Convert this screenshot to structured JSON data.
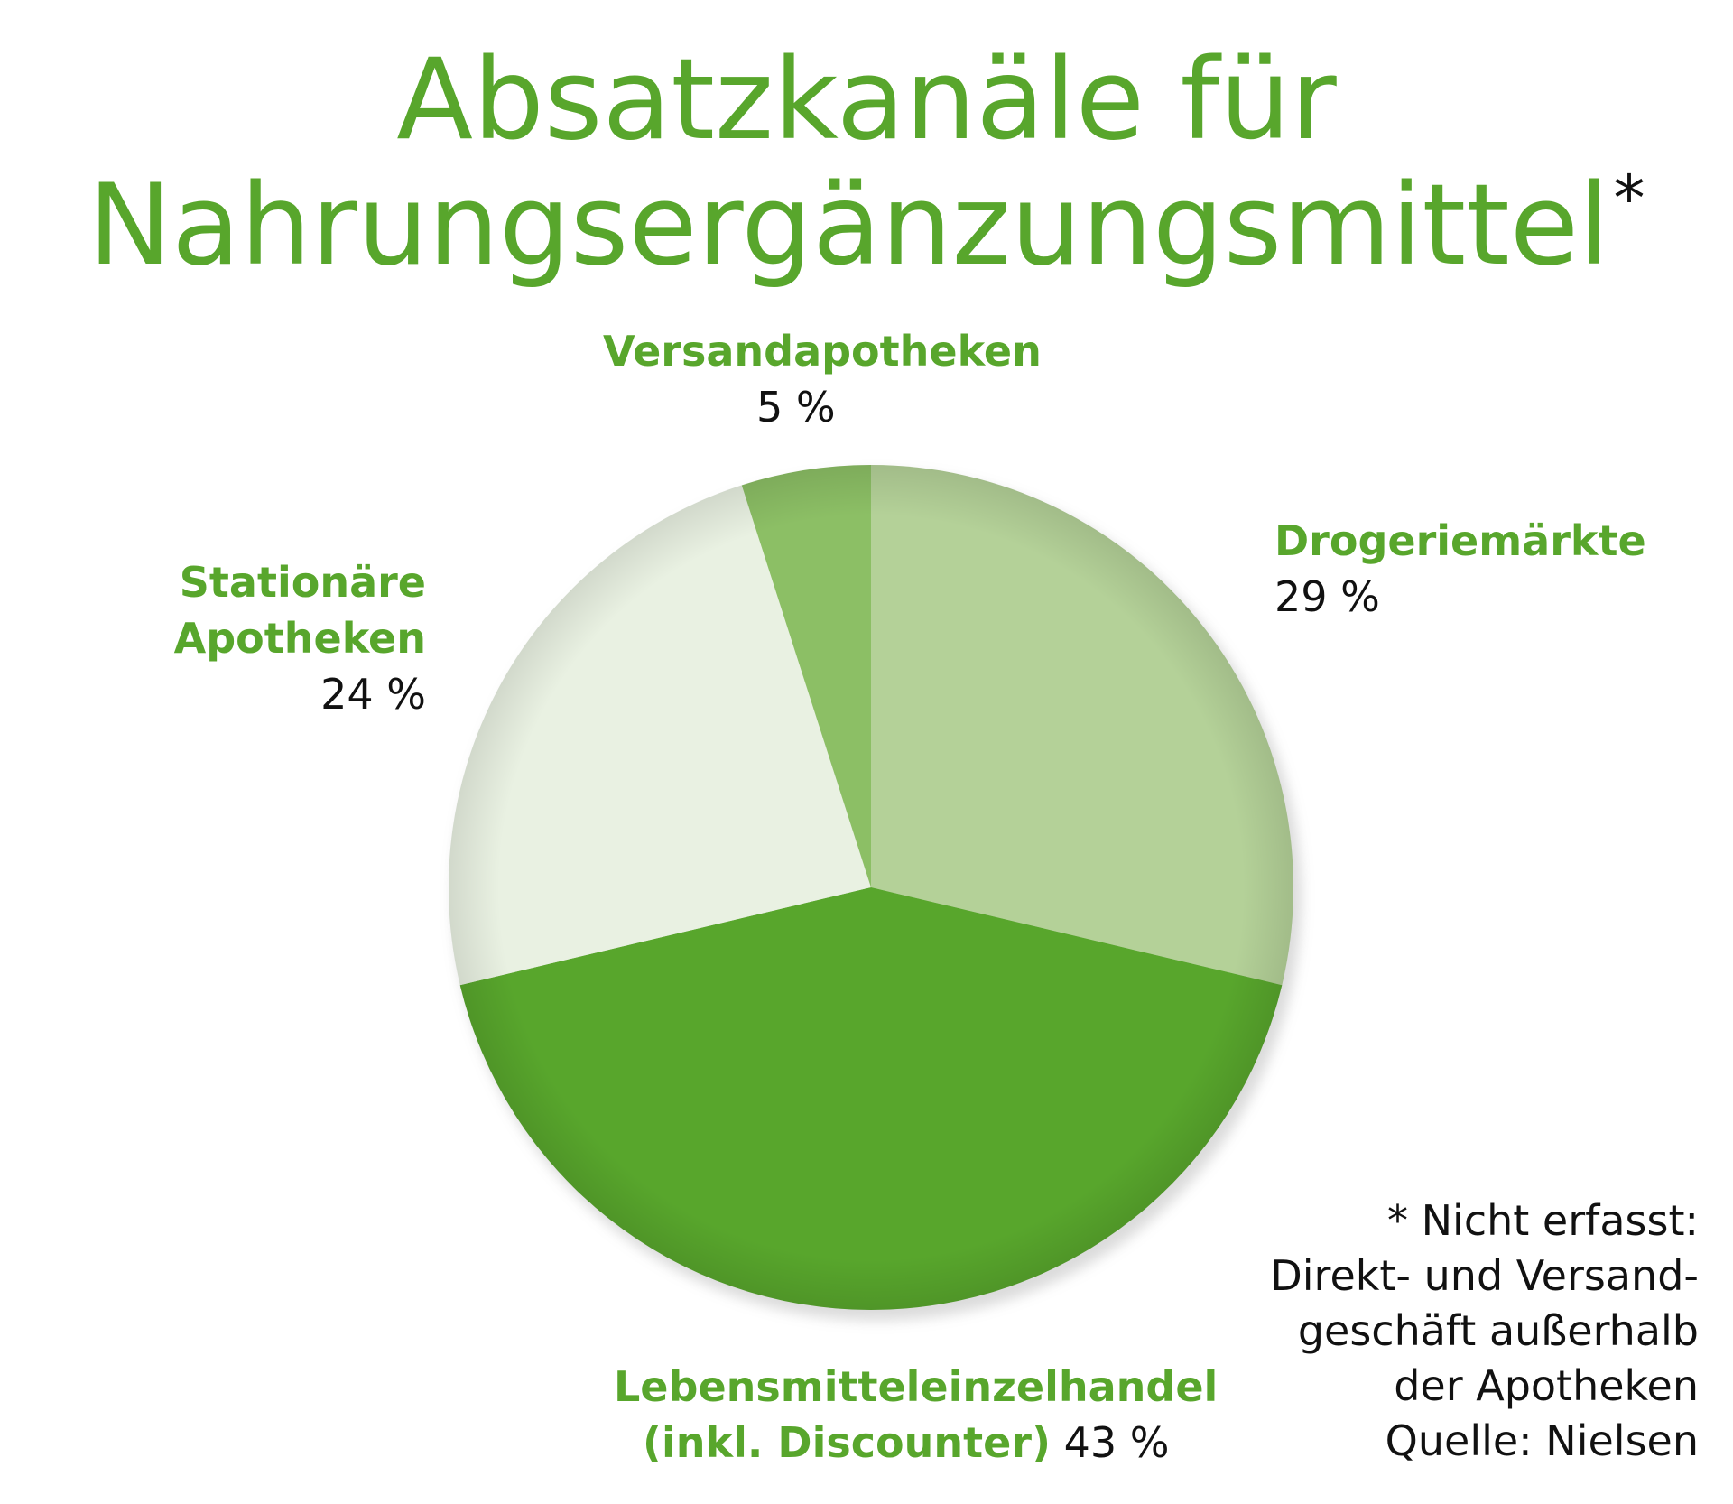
{
  "colors": {
    "title": "#58a62c",
    "label": "#58a62c",
    "value": "#111111",
    "slice_drogeriemaerkte": "#b4d198",
    "slice_lebensmittel": "#58a62c",
    "slice_stationaere_apotheken": "#e9f1e2",
    "slice_versandapotheken": "#8cbf65"
  },
  "title": {
    "line1": "Absatzkanäle für",
    "line2": "Nahrungsergänzungsmittel",
    "asterisk": "*"
  },
  "labels": {
    "versand": {
      "name": "Versandapotheken",
      "value": "5 %"
    },
    "drogerie": {
      "name": "Drogeriemärkte",
      "value": "29 %"
    },
    "stationaer": {
      "name_line1": "Stationäre",
      "name_line2": "Apotheken",
      "value": "24 %"
    },
    "lebensmittel": {
      "name_line1": "Lebensmitteleinzelhandel",
      "name_line2": "(inkl. Discounter)",
      "value": "43 %"
    }
  },
  "footnote": {
    "line1": "* Nicht erfasst:",
    "line2": "Direkt- und Versand-",
    "line3": "geschäft außerhalb",
    "line4": "der Apotheken",
    "line5": "Quelle: Nielsen"
  },
  "chart_data": {
    "type": "pie",
    "title": "Absatzkanäle für Nahrungsergänzungsmittel*",
    "start_angle": "top (12 o'clock), clockwise",
    "slices": [
      {
        "label": "Drogeriemärkte",
        "value": 29,
        "unit": "%",
        "color": "#b4d198"
      },
      {
        "label": "Lebensmitteleinzelhandel (inkl. Discounter)",
        "value": 43,
        "unit": "%",
        "color": "#58a62c"
      },
      {
        "label": "Stationäre Apotheken",
        "value": 24,
        "unit": "%",
        "color": "#e9f1e2"
      },
      {
        "label": "Versandapotheken",
        "value": 5,
        "unit": "%",
        "color": "#8cbf65"
      }
    ]
  }
}
